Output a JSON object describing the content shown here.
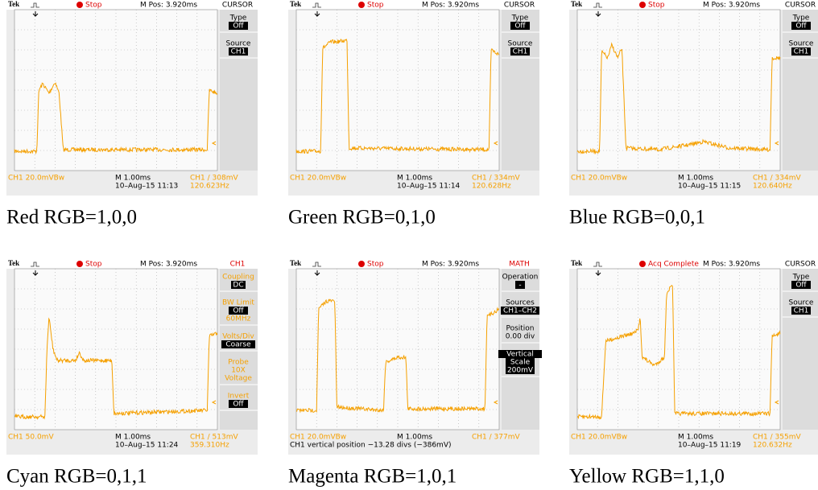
{
  "panels": [
    {
      "header": {
        "brand": "Tek",
        "status": "Stop",
        "mpos": "M Pos: 3.920ms",
        "menu": "CURSOR"
      },
      "menu": [
        [
          {
            "t": "Type"
          },
          {
            "t": "Off",
            "box": true
          }
        ],
        [
          {
            "t": "Source"
          },
          {
            "t": "CH1",
            "box": true
          }
        ]
      ],
      "footer": {
        "channel": "CH1  20.0mVBw",
        "time": "M 1.00ms",
        "date": "10–Aug–15 11:13",
        "trigger": "CH1 ∕ 308mV",
        "freq": "120.623Hz"
      },
      "caption": "Red RGB=1,0,0"
    },
    {
      "header": {
        "brand": "Tek",
        "status": "Stop",
        "mpos": "M Pos: 3.920ms",
        "menu": "CURSOR"
      },
      "menu": [
        [
          {
            "t": "Type"
          },
          {
            "t": "Off",
            "box": true
          }
        ],
        [
          {
            "t": "Source"
          },
          {
            "t": "CH1",
            "box": true
          }
        ]
      ],
      "footer": {
        "channel": "CH1  20.0mVBw",
        "time": "M 1.00ms",
        "date": "10–Aug–15 11:14",
        "trigger": "CH1 ∕ 334mV",
        "freq": "120.628Hz"
      },
      "caption": "Green RGB=0,1,0"
    },
    {
      "header": {
        "brand": "Tek",
        "status": "Stop",
        "mpos": "M Pos: 3.920ms",
        "menu": "CURSOR"
      },
      "menu": [
        [
          {
            "t": "Type"
          },
          {
            "t": "Off",
            "box": true
          }
        ],
        [
          {
            "t": "Source"
          },
          {
            "t": "CH1",
            "box": true
          }
        ]
      ],
      "footer": {
        "channel": "CH1  20.0mVBw",
        "time": "M 1.00ms",
        "date": "10–Aug–15 11:15",
        "trigger": "CH1 ∕ 334mV",
        "freq": "120.640Hz"
      },
      "caption": "Blue RGB=0,0,1"
    },
    {
      "header": {
        "brand": "Tek",
        "status": "Stop",
        "mpos": "M Pos: 3.920ms",
        "menu": "CH1"
      },
      "menu": [
        [
          {
            "t": "Coupling"
          },
          {
            "t": "DC",
            "box": true
          }
        ],
        [
          {
            "t": "BW Limit"
          },
          {
            "t": "Off",
            "box": true
          },
          {
            "t": "60MHz"
          }
        ],
        [
          {
            "t": "Volts/Div"
          },
          {
            "t": "Coarse",
            "box": true
          }
        ],
        [
          {
            "t": "Probe"
          },
          {
            "t": "10X"
          },
          {
            "t": "Voltage"
          }
        ],
        [
          {
            "t": "Invert"
          },
          {
            "t": "Off",
            "box": true
          }
        ]
      ],
      "footer": {
        "channel": "CH1  50.0mV",
        "time": "M 1.00ms",
        "date": "10–Aug–15 11:24",
        "trigger": "CH1 ∕ 513mV",
        "freq": "359.310Hz"
      },
      "caption": "Cyan RGB=0,1,1"
    },
    {
      "header": {
        "brand": "Tek",
        "status": "Stop",
        "mpos": "M Pos: 3.920ms",
        "menu": "MATH"
      },
      "menu": [
        [
          {
            "t": "Operation"
          },
          {
            "t": "-",
            "box": true
          }
        ],
        [
          {
            "t": "Sources"
          },
          {
            "t": "CH1–CH2",
            "box": true
          }
        ],
        [
          {
            "t": "Position"
          },
          {
            "t": "0.00 div"
          }
        ],
        [
          {
            "t": "Vertical",
            "box": true
          },
          {
            "t": "Scale",
            "box": true
          },
          {
            "t": "200mV",
            "box": true
          }
        ]
      ],
      "footer": {
        "channel": "CH1  20.0mVBw",
        "time": "M 1.00ms",
        "trigger": "CH1 ∕ 377mV",
        "note": "CH1 vertical position −13.28 divs (−386mV)"
      },
      "caption": "Magenta RGB=1,0,1"
    },
    {
      "header": {
        "brand": "Tek",
        "status": "Acq Complete",
        "mpos": "M Pos: 3.920ms",
        "menu": "CURSOR"
      },
      "menu": [
        [
          {
            "t": "Type"
          },
          {
            "t": "Off",
            "box": true
          }
        ],
        [
          {
            "t": "Source"
          },
          {
            "t": "CH1",
            "box": true
          }
        ]
      ],
      "footer": {
        "channel": "CH1  20.0mVBw",
        "time": "M 1.00ms",
        "date": "10–Aug–15 11:19",
        "trigger": "CH1 ∕ 355mV",
        "freq": "120.632Hz"
      },
      "caption": "Yellow RGB=1,1,0"
    }
  ]
}
